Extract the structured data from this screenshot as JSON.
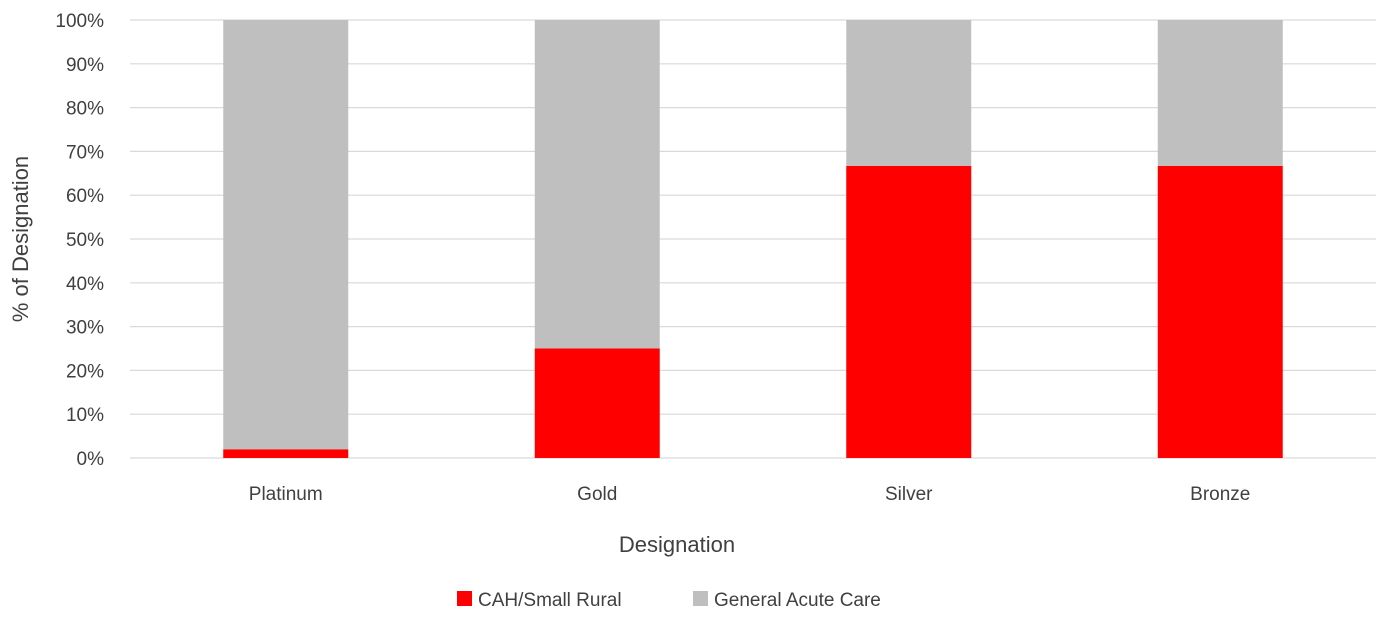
{
  "chart_data": {
    "type": "bar",
    "stacked": true,
    "percent": true,
    "title": "",
    "xlabel": "Designation",
    "ylabel": "% of Designation",
    "categories": [
      "Platinum",
      "Gold",
      "Silver",
      "Bronze"
    ],
    "series": [
      {
        "name": "CAH/Small Rural",
        "color": "#ff0000",
        "values": [
          2,
          25,
          66.7,
          66.7
        ]
      },
      {
        "name": "General Acute Care",
        "color": "#bfbfbf",
        "values": [
          98,
          75,
          33.3,
          33.3
        ]
      }
    ],
    "ylim": [
      0,
      100
    ],
    "yticks": [
      "0%",
      "10%",
      "20%",
      "30%",
      "40%",
      "50%",
      "60%",
      "70%",
      "80%",
      "90%",
      "100%"
    ],
    "grid": true,
    "legend": "bottom"
  }
}
